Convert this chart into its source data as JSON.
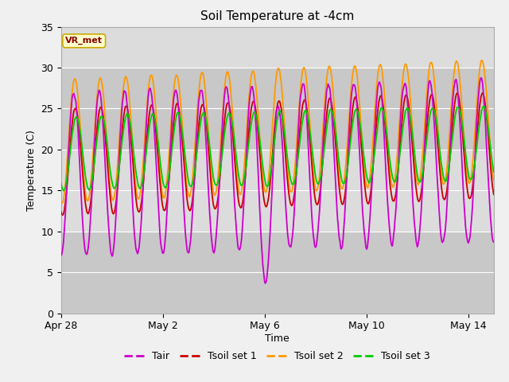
{
  "title": "Soil Temperature at -4cm",
  "xlabel": "Time",
  "ylabel": "Temperature (C)",
  "ylim": [
    0,
    35
  ],
  "yticks": [
    0,
    5,
    10,
    15,
    20,
    25,
    30,
    35
  ],
  "xtick_labels": [
    "Apr 28",
    "May 2",
    "May 6",
    "May 10",
    "May 14"
  ],
  "xtick_positions": [
    0,
    4,
    8,
    12,
    16
  ],
  "xlim": [
    0,
    17
  ],
  "line_colors": {
    "Tair": "#cc00cc",
    "Tsoil set 1": "#cc0000",
    "Tsoil set 2": "#ff9900",
    "Tsoil set 3": "#00cc00"
  },
  "annotation_text": "VR_met",
  "annotation_color": "#8b0000",
  "annotation_bg": "#ffffcc",
  "annotation_border": "#ccaa00",
  "fig_bg_color": "#f0f0f0",
  "plot_bg_color": "#dcdcdc",
  "band_color": "#c8c8c8",
  "grid_color": "#ffffff",
  "n_days": 17,
  "tair_base": 17.0,
  "tair_amp": 10.0,
  "tsoil1_base": 18.5,
  "tsoil1_amp": 6.5,
  "tsoil2_base": 21.0,
  "tsoil2_amp": 7.5,
  "tsoil3_base": 19.5,
  "tsoil3_amp": 4.5,
  "legend_labels": [
    "Tair",
    "Tsoil set 1",
    "Tsoil set 2",
    "Tsoil set 3"
  ]
}
